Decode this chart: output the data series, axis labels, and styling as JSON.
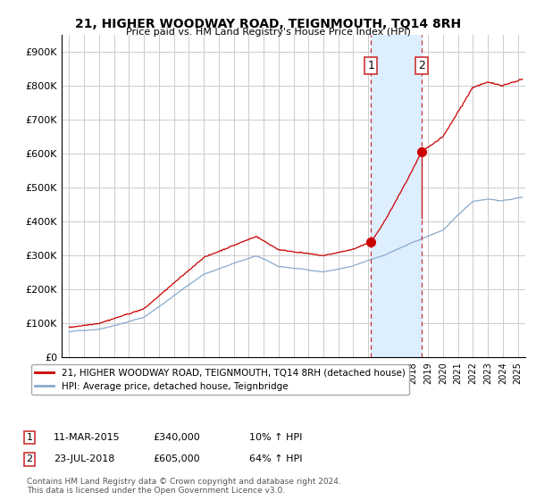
{
  "title": "21, HIGHER WOODWAY ROAD, TEIGNMOUTH, TQ14 8RH",
  "subtitle": "Price paid vs. HM Land Registry's House Price Index (HPI)",
  "ylabel_ticks": [
    "£0",
    "£100K",
    "£200K",
    "£300K",
    "£400K",
    "£500K",
    "£600K",
    "£700K",
    "£800K",
    "£900K"
  ],
  "ytick_values": [
    0,
    100000,
    200000,
    300000,
    400000,
    500000,
    600000,
    700000,
    800000,
    900000
  ],
  "ylim": [
    0,
    950000
  ],
  "xlim_start": 1994.5,
  "xlim_end": 2025.5,
  "sale1_x": 2015.19,
  "sale1_y": 340000,
  "sale2_x": 2018.56,
  "sale2_y": 605000,
  "red_line_color": "#cc0000",
  "blue_line_color": "#88aacc",
  "shade_color": "#ddeeff",
  "vline_color": "#cc3333",
  "legend_label_red": "21, HIGHER WOODWAY ROAD, TEIGNMOUTH, TQ14 8RH (detached house)",
  "legend_label_blue": "HPI: Average price, detached house, Teignbridge",
  "sale1_date": "11-MAR-2015",
  "sale1_price": "£340,000",
  "sale1_hpi": "10% ↑ HPI",
  "sale2_date": "23-JUL-2018",
  "sale2_price": "£605,000",
  "sale2_hpi": "64% ↑ HPI",
  "footnote": "Contains HM Land Registry data © Crown copyright and database right 2024.\nThis data is licensed under the Open Government Licence v3.0.",
  "background_color": "#ffffff",
  "grid_color": "#cccccc"
}
